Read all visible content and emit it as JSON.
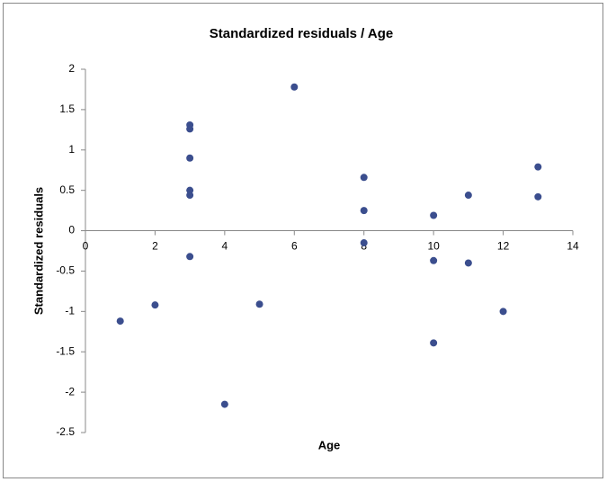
{
  "chart_data": {
    "type": "scatter",
    "title": "Standardized residuals / Age",
    "x_label": "Age",
    "y_label": "Standardized residuals",
    "x": [
      1,
      2,
      3,
      3,
      3,
      3,
      3,
      3,
      4,
      5,
      6,
      8,
      8,
      8,
      10,
      10,
      10,
      11,
      11,
      12,
      13,
      13
    ],
    "values": [
      -1.12,
      -0.92,
      1.31,
      1.26,
      0.9,
      0.5,
      0.44,
      -0.32,
      -2.15,
      -0.91,
      1.78,
      0.66,
      0.25,
      -0.15,
      0.19,
      -0.37,
      -1.39,
      0.44,
      -0.4,
      -1.0,
      0.79,
      0.42
    ],
    "color": "#3b4e8e",
    "xlim": [
      0,
      14
    ],
    "xticks": [
      0,
      2,
      4,
      6,
      8,
      10,
      12,
      14
    ],
    "ylim": [
      -2.5,
      2
    ],
    "yticks": [
      -2.5,
      -2,
      -1.5,
      -1,
      -0.5,
      0,
      0.5,
      1,
      1.5,
      2
    ]
  }
}
